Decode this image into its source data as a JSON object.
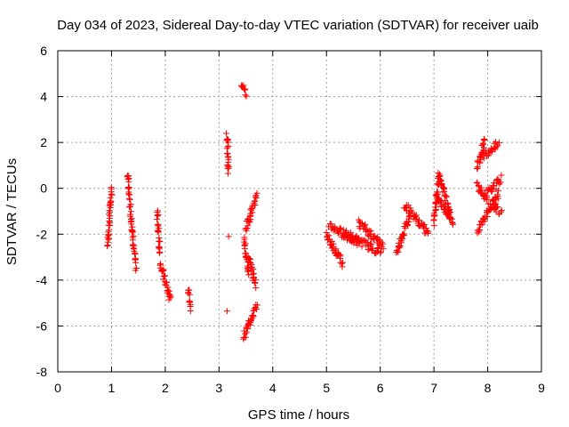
{
  "chart_data": {
    "type": "scatter",
    "title": "Day 034 of 2023, Sidereal Day-to-day VTEC variation (SDTVAR) for receiver uaib",
    "xlabel": "GPS time / hours",
    "ylabel": "SDTVAR / TECUs",
    "xlim": [
      0,
      9
    ],
    "ylim": [
      -8,
      6
    ],
    "xticks": [
      0,
      1,
      2,
      3,
      4,
      5,
      6,
      7,
      8,
      9
    ],
    "yticks": [
      -8,
      -6,
      -4,
      -2,
      0,
      2,
      4,
      6
    ],
    "grid": true,
    "marker": "+",
    "color": "#ff0000",
    "segments": [
      {
        "x0": 0.93,
        "x1": 1.0,
        "y0": -2.5,
        "y1": 0.0
      },
      {
        "x0": 1.3,
        "x1": 1.45,
        "y0": 0.6,
        "y1": -3.5
      },
      {
        "x0": 1.85,
        "x1": 1.9,
        "y0": -1.0,
        "y1": -2.8
      },
      {
        "x0": 1.9,
        "x1": 2.1,
        "y0": -3.2,
        "y1": -4.9
      },
      {
        "x0": 2.43,
        "x1": 2.47,
        "y0": -4.3,
        "y1": -5.2
      },
      {
        "x0": 3.15,
        "x1": 3.18,
        "y0": 2.4,
        "y1": 0.7
      },
      {
        "x0": 3.43,
        "x1": 3.5,
        "y0": 4.6,
        "y1": 4.1
      },
      {
        "x0": 3.47,
        "x1": 3.55,
        "y0": -2.2,
        "y1": -3.8
      },
      {
        "x0": 3.5,
        "x1": 3.7,
        "y0": -1.8,
        "y1": -0.3
      },
      {
        "x0": 3.45,
        "x1": 3.7,
        "y0": -6.5,
        "y1": -5.1
      },
      {
        "x0": 3.55,
        "x1": 3.68,
        "y0": -3.0,
        "y1": -4.2
      },
      {
        "x0": 5.0,
        "x1": 5.3,
        "y0": -2.0,
        "y1": -3.3
      },
      {
        "x0": 5.05,
        "x1": 5.6,
        "y0": -1.6,
        "y1": -2.4
      },
      {
        "x0": 5.3,
        "x1": 6.0,
        "y0": -1.9,
        "y1": -2.8
      },
      {
        "x0": 5.6,
        "x1": 6.05,
        "y0": -1.5,
        "y1": -2.5
      },
      {
        "x0": 6.3,
        "x1": 6.55,
        "y0": -2.8,
        "y1": -1.2
      },
      {
        "x0": 6.45,
        "x1": 6.9,
        "y0": -0.7,
        "y1": -2.0
      },
      {
        "x0": 7.0,
        "x1": 7.1,
        "y0": -1.5,
        "y1": 0.7
      },
      {
        "x0": 7.1,
        "x1": 7.35,
        "y0": 0.6,
        "y1": -1.5
      },
      {
        "x0": 7.05,
        "x1": 7.3,
        "y0": -0.3,
        "y1": -1.3
      },
      {
        "x0": 7.8,
        "x1": 7.95,
        "y0": 0.9,
        "y1": 2.1
      },
      {
        "x0": 7.9,
        "x1": 8.2,
        "y0": 1.4,
        "y1": 2.0
      },
      {
        "x0": 7.8,
        "x1": 8.2,
        "y0": -1.9,
        "y1": -0.2
      },
      {
        "x0": 7.8,
        "x1": 8.0,
        "y0": 0.2,
        "y1": -0.6
      },
      {
        "x0": 8.0,
        "x1": 8.25,
        "y0": -0.2,
        "y1": 0.4
      },
      {
        "x0": 8.1,
        "x1": 8.25,
        "y0": -0.7,
        "y1": -1.1
      }
    ],
    "isolated_points": [
      {
        "x": 3.15,
        "y": -5.35
      },
      {
        "x": 3.18,
        "y": -2.1
      }
    ]
  }
}
